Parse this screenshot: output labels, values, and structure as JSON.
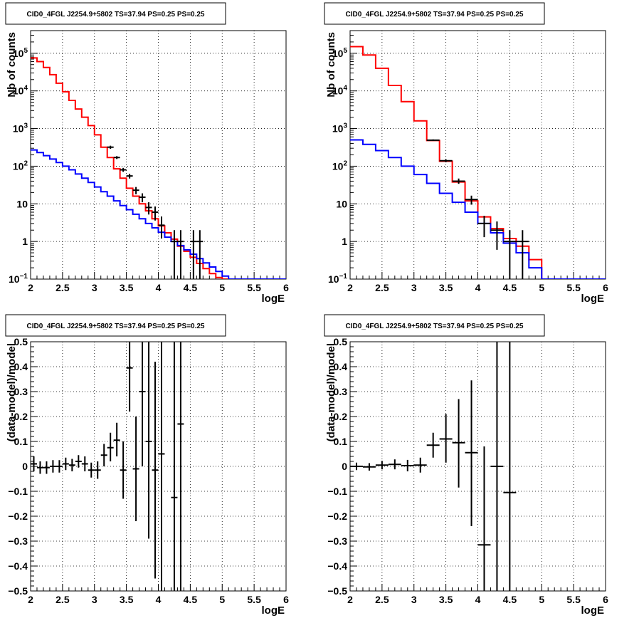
{
  "panel_title": "CID0_4FGL J2254.9+5802 TS=37.94 PS=0.25 PS=0.25",
  "colors": {
    "data": "#000000",
    "total_model": "#ff0000",
    "source_model": "#0000ff",
    "grid": "#000000"
  },
  "chart_data": [
    {
      "type": "line",
      "title": "CID0_4FGL J2254.9+5802 TS=37.94 PS=0.25 PS=0.25",
      "xlabel": "logE",
      "ylabel": "Nb of counts",
      "xlim": [
        2,
        6
      ],
      "ylim": [
        0.1,
        400000
      ],
      "log_y": true,
      "grid": true,
      "x_ticks": [
        "2",
        "2.5",
        "3",
        "3.5",
        "4",
        "4.5",
        "5",
        "5.5",
        "6"
      ],
      "y_ticks": [
        {
          "v": 0.1,
          "label": "10",
          "sup": "−1"
        },
        {
          "v": 1,
          "label": "1",
          "sup": ""
        },
        {
          "v": 10,
          "label": "10",
          "sup": ""
        },
        {
          "v": 100,
          "label": "10",
          "sup": "2"
        },
        {
          "v": 1000,
          "label": "10",
          "sup": "3"
        },
        {
          "v": 10000,
          "label": "10",
          "sup": "4"
        },
        {
          "v": 100000,
          "label": "10",
          "sup": "5"
        }
      ],
      "bin_edges": [
        2.0,
        2.1,
        2.2,
        2.3,
        2.4,
        2.5,
        2.6,
        2.7,
        2.8,
        2.9,
        3.0,
        3.1,
        3.2,
        3.3,
        3.4,
        3.5,
        3.6,
        3.7,
        3.8,
        3.9,
        4.0,
        4.1,
        4.2,
        4.3,
        4.4,
        4.5,
        4.6,
        4.7,
        4.8,
        4.9,
        5.0,
        5.1,
        5.2,
        5.3,
        5.4,
        5.5,
        5.6,
        5.7,
        5.8,
        5.9,
        6.0
      ],
      "series": [
        {
          "kind": "step",
          "values": [
            75000,
            60000,
            42000,
            27000,
            16000,
            9500,
            5600,
            3300,
            2000,
            1200,
            680,
            320,
            170,
            85,
            48,
            26,
            16,
            10,
            6.5,
            4,
            2.6,
            1.7,
            1.15,
            0.75,
            0.55,
            0.38,
            0.26,
            0.19,
            0.14,
            0.11,
            0.1,
            0.1,
            0.1,
            0.1,
            0.1,
            0.1,
            0.1,
            0.1,
            0.1,
            0.1
          ]
        },
        {
          "kind": "step",
          "values": [
            270,
            230,
            190,
            155,
            125,
            100,
            80,
            62,
            48,
            37,
            28,
            21,
            16,
            12,
            9,
            7,
            5.3,
            4,
            3,
            2.3,
            1.75,
            1.3,
            1.0,
            0.78,
            0.6,
            0.46,
            0.35,
            0.27,
            0.21,
            0.16,
            0.12,
            0.1,
            0.1,
            0.1,
            0.1,
            0.1,
            0.1,
            0.1,
            0.1,
            0.1
          ]
        },
        {
          "kind": "errorbars",
          "points": [
            {
              "x": 3.25,
              "y": 320,
              "lo": 290,
              "hi": 350,
              "xerr": 0.05
            },
            {
              "x": 3.35,
              "y": 170,
              "lo": 155,
              "hi": 185,
              "xerr": 0.05
            },
            {
              "x": 3.45,
              "y": 80,
              "lo": 71,
              "hi": 90,
              "xerr": 0.05
            },
            {
              "x": 3.55,
              "y": 55,
              "lo": 47,
              "hi": 63,
              "xerr": 0.05
            },
            {
              "x": 3.65,
              "y": 23,
              "lo": 18,
              "hi": 28,
              "xerr": 0.05
            },
            {
              "x": 3.75,
              "y": 15,
              "lo": 11,
              "hi": 19,
              "xerr": 0.05
            },
            {
              "x": 3.85,
              "y": 8,
              "lo": 5.2,
              "hi": 11,
              "xerr": 0.05
            },
            {
              "x": 3.95,
              "y": 6,
              "lo": 3.6,
              "hi": 8.5,
              "xerr": 0.05
            },
            {
              "x": 4.05,
              "y": 2.7,
              "lo": 1.2,
              "hi": 4.6,
              "xerr": 0.05
            },
            {
              "x": 4.25,
              "y": 1,
              "lo": 0.1,
              "hi": 2,
              "xerr": 0.05
            },
            {
              "x": 4.35,
              "y": 1,
              "lo": 0.1,
              "hi": 2,
              "xerr": 0.05
            },
            {
              "x": 4.55,
              "y": 1,
              "lo": 0.1,
              "hi": 2,
              "xerr": 0.05
            },
            {
              "x": 4.65,
              "y": 1,
              "lo": 0.1,
              "hi": 2,
              "xerr": 0.05
            }
          ]
        }
      ]
    },
    {
      "type": "line",
      "title": "CID0_4FGL J2254.9+5802 TS=37.94 PS=0.25 PS=0.25",
      "xlabel": "logE",
      "ylabel": "Nb of counts",
      "xlim": [
        2,
        6
      ],
      "ylim": [
        0.1,
        400000
      ],
      "log_y": true,
      "grid": true,
      "x_ticks": [
        "2",
        "2.5",
        "3",
        "3.5",
        "4",
        "4.5",
        "5",
        "5.5",
        "6"
      ],
      "y_ticks": [
        {
          "v": 0.1,
          "label": "10",
          "sup": "−1"
        },
        {
          "v": 1,
          "label": "1",
          "sup": ""
        },
        {
          "v": 10,
          "label": "10",
          "sup": ""
        },
        {
          "v": 100,
          "label": "10",
          "sup": "2"
        },
        {
          "v": 1000,
          "label": "10",
          "sup": "3"
        },
        {
          "v": 10000,
          "label": "10",
          "sup": "4"
        },
        {
          "v": 100000,
          "label": "10",
          "sup": "5"
        }
      ],
      "bin_edges": [
        2.0,
        2.2,
        2.4,
        2.6,
        2.8,
        3.0,
        3.2,
        3.4,
        3.6,
        3.8,
        4.0,
        4.2,
        4.4,
        4.6,
        4.8,
        5.0,
        5.2,
        5.4,
        5.6,
        5.8,
        6.0
      ],
      "series": [
        {
          "kind": "step",
          "values": [
            150000,
            90000,
            40000,
            14000,
            5200,
            1600,
            480,
            135,
            38,
            12,
            4.5,
            2.2,
            1.2,
            0.75,
            0.33,
            0.1,
            0.1,
            0.1,
            0.1,
            0.1
          ]
        },
        {
          "kind": "step",
          "values": [
            500,
            380,
            260,
            170,
            100,
            60,
            35,
            19,
            11,
            6,
            3,
            1.7,
            0.9,
            0.5,
            0.2,
            0.1,
            0.1,
            0.1,
            0.1,
            0.1
          ]
        },
        {
          "kind": "errorbars",
          "points": [
            {
              "x": 3.3,
              "y": 490,
              "lo": 470,
              "hi": 515,
              "xerr": 0.1
            },
            {
              "x": 3.5,
              "y": 140,
              "lo": 128,
              "hi": 152,
              "xerr": 0.1
            },
            {
              "x": 3.7,
              "y": 40,
              "lo": 34,
              "hi": 47,
              "xerr": 0.1
            },
            {
              "x": 3.9,
              "y": 13,
              "lo": 9.5,
              "hi": 16.5,
              "xerr": 0.1
            },
            {
              "x": 4.1,
              "y": 3,
              "lo": 1.3,
              "hi": 4.8,
              "xerr": 0.1
            },
            {
              "x": 4.3,
              "y": 2,
              "lo": 0.6,
              "hi": 3.4,
              "xerr": 0.1
            },
            {
              "x": 4.5,
              "y": 1,
              "lo": 0.1,
              "hi": 2,
              "xerr": 0.1
            },
            {
              "x": 4.7,
              "y": 1,
              "lo": 0.1,
              "hi": 2,
              "xerr": 0.1
            }
          ]
        }
      ]
    },
    {
      "type": "scatter",
      "title": "CID0_4FGL J2254.9+5802 TS=37.94 PS=0.25 PS=0.25",
      "xlabel": "logE",
      "ylabel": "(data-model)/model",
      "xlim": [
        2,
        6
      ],
      "ylim": [
        -0.5,
        0.5
      ],
      "log_y": false,
      "grid": true,
      "x_ticks": [
        "2",
        "2.5",
        "3",
        "3.5",
        "4",
        "4.5",
        "5",
        "5.5",
        "6"
      ],
      "y_ticks": [
        {
          "v": -0.5,
          "label": "−0.5",
          "sup": ""
        },
        {
          "v": -0.4,
          "label": "−0.4",
          "sup": ""
        },
        {
          "v": -0.3,
          "label": "−0.3",
          "sup": ""
        },
        {
          "v": -0.2,
          "label": "−0.2",
          "sup": ""
        },
        {
          "v": -0.1,
          "label": "−0.1",
          "sup": ""
        },
        {
          "v": 0,
          "label": "0",
          "sup": ""
        },
        {
          "v": 0.1,
          "label": "0.1",
          "sup": ""
        },
        {
          "v": 0.2,
          "label": "0.2",
          "sup": ""
        },
        {
          "v": 0.3,
          "label": "0.3",
          "sup": ""
        },
        {
          "v": 0.4,
          "label": "0.4",
          "sup": ""
        },
        {
          "v": 0.5,
          "label": "0.5",
          "sup": ""
        }
      ],
      "series": [
        {
          "kind": "errorbars",
          "points": [
            {
              "x": 2.05,
              "y": 0.01,
              "lo": -0.02,
              "hi": 0.04,
              "xerr": 0.05
            },
            {
              "x": 2.15,
              "y": -0.005,
              "lo": -0.03,
              "hi": 0.02,
              "xerr": 0.05
            },
            {
              "x": 2.25,
              "y": -0.005,
              "lo": -0.03,
              "hi": 0.02,
              "xerr": 0.05
            },
            {
              "x": 2.35,
              "y": 0.0,
              "lo": -0.025,
              "hi": 0.025,
              "xerr": 0.05
            },
            {
              "x": 2.45,
              "y": 0.0,
              "lo": -0.025,
              "hi": 0.025,
              "xerr": 0.05
            },
            {
              "x": 2.55,
              "y": 0.01,
              "lo": -0.015,
              "hi": 0.035,
              "xerr": 0.05
            },
            {
              "x": 2.65,
              "y": 0.005,
              "lo": -0.02,
              "hi": 0.03,
              "xerr": 0.05
            },
            {
              "x": 2.75,
              "y": 0.02,
              "lo": -0.005,
              "hi": 0.045,
              "xerr": 0.05
            },
            {
              "x": 2.85,
              "y": 0.01,
              "lo": -0.02,
              "hi": 0.04,
              "xerr": 0.05
            },
            {
              "x": 2.95,
              "y": -0.015,
              "lo": -0.045,
              "hi": 0.015,
              "xerr": 0.05
            },
            {
              "x": 3.05,
              "y": -0.015,
              "lo": -0.05,
              "hi": 0.02,
              "xerr": 0.05
            },
            {
              "x": 3.15,
              "y": 0.045,
              "lo": 0.0,
              "hi": 0.09,
              "xerr": 0.05
            },
            {
              "x": 3.25,
              "y": 0.075,
              "lo": 0.02,
              "hi": 0.135,
              "xerr": 0.05
            },
            {
              "x": 3.35,
              "y": 0.105,
              "lo": 0.04,
              "hi": 0.175,
              "xerr": 0.05
            },
            {
              "x": 3.45,
              "y": -0.015,
              "lo": -0.13,
              "hi": 0.1,
              "xerr": 0.05
            },
            {
              "x": 3.55,
              "y": 0.395,
              "lo": 0.22,
              "hi": 0.6,
              "xerr": 0.05
            },
            {
              "x": 3.65,
              "y": -0.01,
              "lo": -0.22,
              "hi": 0.2,
              "xerr": 0.05
            },
            {
              "x": 3.75,
              "y": 0.3,
              "lo": 0.0,
              "hi": 0.6,
              "xerr": 0.05
            },
            {
              "x": 3.85,
              "y": 0.1,
              "lo": -0.29,
              "hi": 0.5,
              "xerr": 0.05
            },
            {
              "x": 3.95,
              "y": -0.015,
              "lo": -0.45,
              "hi": 0.42,
              "xerr": 0.05
            },
            {
              "x": 4.05,
              "y": 0.05,
              "lo": -0.5,
              "hi": 0.6,
              "xerr": 0.05
            },
            {
              "x": 4.25,
              "y": -0.125,
              "lo": -0.6,
              "hi": 0.5,
              "xerr": 0.05
            },
            {
              "x": 4.35,
              "y": 0.17,
              "lo": -0.6,
              "hi": 0.6,
              "xerr": 0.05
            }
          ]
        }
      ]
    },
    {
      "type": "scatter",
      "title": "CID0_4FGL J2254.9+5802 TS=37.94 PS=0.25 PS=0.25",
      "xlabel": "logE",
      "ylabel": "(data-model)/model",
      "xlim": [
        2,
        6
      ],
      "ylim": [
        -0.5,
        0.5
      ],
      "log_y": false,
      "grid": true,
      "x_ticks": [
        "2",
        "2.5",
        "3",
        "3.5",
        "4",
        "4.5",
        "5",
        "5.5",
        "6"
      ],
      "y_ticks": [
        {
          "v": -0.5,
          "label": "−0.5",
          "sup": ""
        },
        {
          "v": -0.4,
          "label": "−0.4",
          "sup": ""
        },
        {
          "v": -0.3,
          "label": "−0.3",
          "sup": ""
        },
        {
          "v": -0.2,
          "label": "−0.2",
          "sup": ""
        },
        {
          "v": -0.1,
          "label": "−0.1",
          "sup": ""
        },
        {
          "v": 0,
          "label": "0",
          "sup": ""
        },
        {
          "v": 0.1,
          "label": "0.1",
          "sup": ""
        },
        {
          "v": 0.2,
          "label": "0.2",
          "sup": ""
        },
        {
          "v": 0.3,
          "label": "0.3",
          "sup": ""
        },
        {
          "v": 0.4,
          "label": "0.4",
          "sup": ""
        },
        {
          "v": 0.5,
          "label": "0.5",
          "sup": ""
        }
      ],
      "series": [
        {
          "kind": "errorbars",
          "points": [
            {
              "x": 2.1,
              "y": 0.0,
              "lo": -0.015,
              "hi": 0.015,
              "xerr": 0.1
            },
            {
              "x": 2.3,
              "y": -0.002,
              "lo": -0.017,
              "hi": 0.013,
              "xerr": 0.1
            },
            {
              "x": 2.5,
              "y": 0.005,
              "lo": -0.012,
              "hi": 0.022,
              "xerr": 0.1
            },
            {
              "x": 2.7,
              "y": 0.008,
              "lo": -0.012,
              "hi": 0.028,
              "xerr": 0.1
            },
            {
              "x": 2.9,
              "y": 0.003,
              "lo": -0.02,
              "hi": 0.026,
              "xerr": 0.1
            },
            {
              "x": 3.1,
              "y": 0.005,
              "lo": -0.025,
              "hi": 0.035,
              "xerr": 0.1
            },
            {
              "x": 3.3,
              "y": 0.085,
              "lo": 0.035,
              "hi": 0.135,
              "xerr": 0.1
            },
            {
              "x": 3.5,
              "y": 0.11,
              "lo": 0.015,
              "hi": 0.21,
              "xerr": 0.1
            },
            {
              "x": 3.7,
              "y": 0.095,
              "lo": -0.085,
              "hi": 0.27,
              "xerr": 0.1
            },
            {
              "x": 3.9,
              "y": 0.055,
              "lo": -0.24,
              "hi": 0.345,
              "xerr": 0.1
            },
            {
              "x": 4.1,
              "y": -0.315,
              "lo": -0.6,
              "hi": 0.08,
              "xerr": 0.1
            },
            {
              "x": 4.3,
              "y": 0.0,
              "lo": -0.6,
              "hi": 0.6,
              "xerr": 0.1
            },
            {
              "x": 4.5,
              "y": -0.105,
              "lo": -0.6,
              "hi": 0.6,
              "xerr": 0.1
            }
          ]
        }
      ]
    }
  ]
}
